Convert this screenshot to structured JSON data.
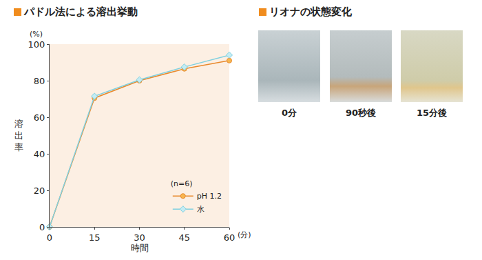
{
  "chart_data": {
    "type": "line",
    "title": "パドル法による溶出挙動",
    "xlabel": "時間",
    "ylabel": "溶出率",
    "xunit": "(分)",
    "yunit": "(%)",
    "x": [
      0,
      15,
      30,
      45,
      60
    ],
    "series": [
      {
        "name": "pH 1.2",
        "color": "#e8892c",
        "marker": "circle",
        "values": [
          0,
          70.5,
          80,
          86.5,
          91
        ]
      },
      {
        "name": "水",
        "color": "#7fd0e0",
        "marker": "diamond",
        "values": [
          0,
          71.5,
          80.5,
          87.5,
          94
        ]
      }
    ],
    "xlim": [
      0,
      60
    ],
    "ylim": [
      0,
      100
    ],
    "xticks": [
      0,
      15,
      30,
      45,
      60
    ],
    "yticks": [
      0,
      20,
      40,
      60,
      80,
      100
    ],
    "grid": false,
    "legend": "lower right",
    "legend_title": "(n=6)"
  },
  "photo_panel": {
    "title": "リオナの状態変化",
    "captions": [
      "0分",
      "90秒後",
      "15分後"
    ]
  }
}
